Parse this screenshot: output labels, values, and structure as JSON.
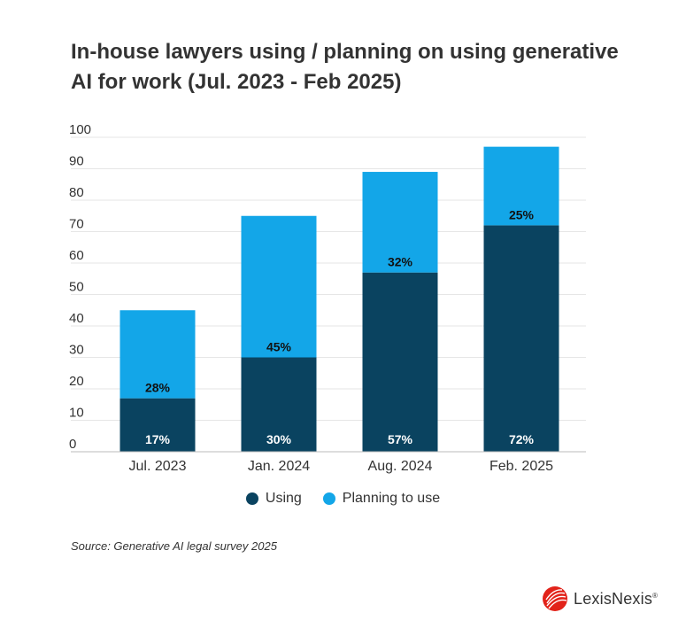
{
  "title": "In-house lawyers using / planning on using generative AI for work (Jul. 2023 - Feb 2025)",
  "source": "Source: Generative AI legal survey 2025",
  "brand": {
    "name": "LexisNexis",
    "reg": "®"
  },
  "colors": {
    "using": "#0a4360",
    "planning": "#13a6e8",
    "grid": "#e6e6e6",
    "axis": "#bbbbbb"
  },
  "chart_data": {
    "type": "bar",
    "stacked": true,
    "categories": [
      "Jul. 2023",
      "Jan. 2024",
      "Aug. 2024",
      "Feb. 2025"
    ],
    "series": [
      {
        "name": "Using",
        "values": [
          17,
          30,
          57,
          72
        ],
        "labels": [
          "17%",
          "30%",
          "57%",
          "72%"
        ]
      },
      {
        "name": "Planning to use",
        "values": [
          28,
          45,
          32,
          25
        ],
        "labels": [
          "28%",
          "45%",
          "32%",
          "25%"
        ]
      }
    ],
    "yticks": [
      "0",
      "10",
      "20",
      "30",
      "40",
      "50",
      "60",
      "70",
      "80",
      "90",
      "100"
    ],
    "ylim": [
      0,
      100
    ],
    "xlabel": "",
    "ylabel": "",
    "grid": true,
    "legend": "bottom-center"
  }
}
